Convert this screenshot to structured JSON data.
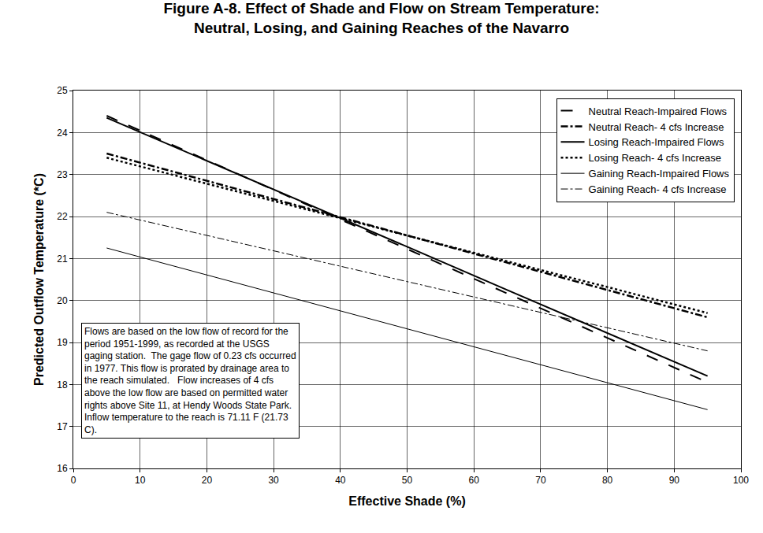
{
  "chart_data": {
    "type": "line",
    "title": [
      "Figure A-8. Effect of Shade and Flow on Stream Temperature:",
      "Neutral, Losing, and Gaining Reaches of the Navarro"
    ],
    "x_label": "Effective Shade (%)",
    "y_label": "Predicted Outflow Temperature (*C)",
    "x": [
      5,
      20,
      35,
      50,
      65,
      80,
      95
    ],
    "series": [
      {
        "name": "Neutral Reach-Impaired Flows",
        "color": "#000000",
        "line_style": "longdash",
        "values": [
          24.4,
          23.34,
          22.28,
          21.23,
          20.17,
          19.11,
          18.05
        ]
      },
      {
        "name": "Neutral Reach- 4 cfs Increase",
        "color": "#000000",
        "line_style": "dashdot",
        "values": [
          23.5,
          22.85,
          22.2,
          21.55,
          20.9,
          20.25,
          19.6
        ]
      },
      {
        "name": "Losing Reach-Impaired Flows",
        "color": "#000000",
        "line_style": "solid",
        "values": [
          24.35,
          23.33,
          22.3,
          21.28,
          20.25,
          19.23,
          18.2
        ]
      },
      {
        "name": "Losing Reach- 4 cfs Increase",
        "color": "#000000",
        "line_style": "dot",
        "values": [
          23.4,
          22.78,
          22.17,
          21.55,
          20.93,
          20.32,
          19.7
        ]
      },
      {
        "name": "Gaining Reach-Impaired Flows",
        "color": "#000000",
        "line_style": "thin",
        "values": [
          21.25,
          20.61,
          19.97,
          19.33,
          18.68,
          18.04,
          17.4
        ]
      },
      {
        "name": "Gaining Reach- 4 cfs Increase",
        "color": "#000000",
        "line_style": "thindashdot",
        "values": [
          22.1,
          21.55,
          21.0,
          20.45,
          19.9,
          19.35,
          18.8
        ]
      }
    ],
    "xlim": [
      0,
      100
    ],
    "xticks": [
      0,
      10,
      20,
      30,
      40,
      50,
      60,
      70,
      80,
      90,
      100
    ],
    "ylim": [
      16,
      25
    ],
    "yticks": [
      16,
      17,
      18,
      19,
      20,
      21,
      22,
      23,
      24,
      25
    ],
    "grid": true,
    "legend": "top right",
    "annotation": [
      "Flows are based on the low flow of record for the",
      "period 1951-1999, as recorded at the USGS",
      "gaging station.  The gage flow of 0.23 cfs occurred",
      "in 1977. This flow is prorated by drainage area to",
      "the reach simulated.   Flow increases of 4 cfs",
      "above the low flow are based on permitted water",
      "rights above Site 11, at Hendy Woods State Park.",
      "Inflow temperature to the reach is 71.11 F (21.73",
      "C)."
    ]
  }
}
